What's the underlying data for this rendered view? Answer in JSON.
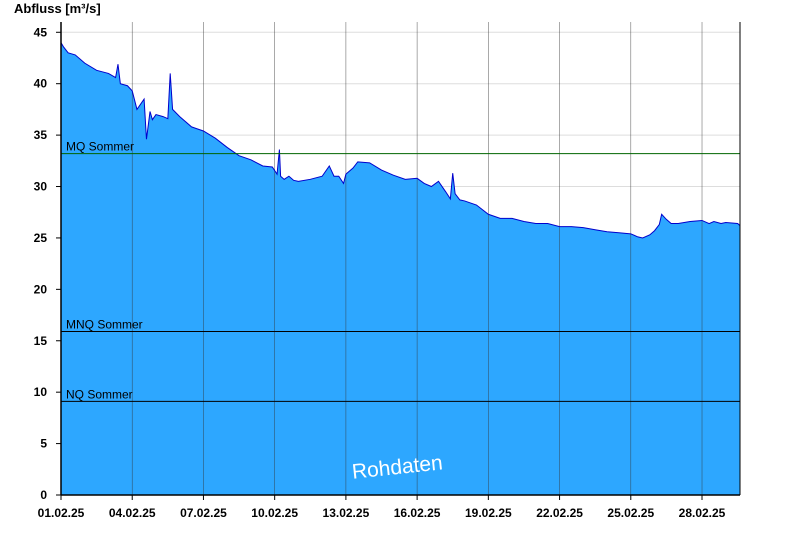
{
  "chart_data": {
    "type": "area",
    "ylabel": "Abfluss [m³/s]",
    "watermark": "Rohdaten",
    "ylim": [
      0,
      46
    ],
    "yticks": [
      0,
      5,
      10,
      15,
      20,
      25,
      30,
      35,
      40,
      45
    ],
    "xticks": [
      "01.02.25",
      "04.02.25",
      "07.02.25",
      "10.02.25",
      "13.02.25",
      "16.02.25",
      "19.02.25",
      "22.02.25",
      "25.02.25",
      "28.02.25"
    ],
    "xlim_days": [
      1,
      29.6
    ],
    "grid": true,
    "colors": {
      "fill": "#2da7ff",
      "line": "#0000cc",
      "mq_line": "#006400",
      "ref_line": "#000000"
    },
    "reference_lines": [
      {
        "name": "MQ Sommer",
        "value": 33.2
      },
      {
        "name": "MNQ Sommer",
        "value": 15.9
      },
      {
        "name": "NQ Sommer",
        "value": 9.1
      }
    ],
    "series": [
      {
        "x": [
          1.0,
          1.1,
          1.3,
          1.6,
          2.0,
          2.5,
          3.0,
          3.3,
          3.4,
          3.5,
          3.8,
          4.0,
          4.2,
          4.5,
          4.6,
          4.75,
          4.85,
          5.0,
          5.3,
          5.5,
          5.6,
          5.7,
          6.0,
          6.5,
          7.0,
          7.5,
          8.0,
          8.5,
          9.0,
          9.5,
          9.9,
          10.1,
          10.2,
          10.25,
          10.4,
          10.6,
          10.8,
          11.0,
          11.5,
          12.0,
          12.3,
          12.5,
          12.7,
          12.9,
          13.0,
          13.3,
          13.5,
          14.0,
          14.5,
          15.0,
          15.5,
          16.0,
          16.3,
          16.6,
          16.9,
          17.2,
          17.4,
          17.5,
          17.6,
          17.8,
          18.0,
          18.5,
          19.0,
          19.5,
          20.0,
          20.5,
          21.0,
          21.5,
          22.0,
          22.5,
          23.0,
          23.5,
          24.0,
          24.5,
          25.0,
          25.3,
          25.5,
          25.8,
          26.0,
          26.2,
          26.3,
          26.5,
          26.7,
          27.0,
          27.5,
          28.0,
          28.3,
          28.5,
          28.8,
          29.0,
          29.5,
          29.6
        ],
        "y": [
          44.0,
          43.6,
          43.0,
          42.8,
          42.0,
          41.3,
          41.0,
          40.6,
          41.9,
          40.0,
          39.8,
          39.3,
          37.5,
          38.5,
          34.6,
          37.3,
          36.5,
          37.0,
          36.8,
          36.6,
          41.0,
          37.5,
          36.8,
          35.8,
          35.4,
          34.7,
          33.8,
          33.0,
          32.6,
          32.0,
          31.9,
          31.2,
          33.6,
          31.0,
          30.7,
          31.0,
          30.6,
          30.5,
          30.7,
          31.0,
          32.0,
          31.0,
          31.0,
          30.3,
          31.2,
          31.8,
          32.4,
          32.3,
          31.6,
          31.1,
          30.7,
          30.8,
          30.3,
          30.0,
          30.5,
          29.5,
          28.8,
          31.3,
          29.3,
          28.7,
          28.6,
          28.2,
          27.3,
          26.9,
          26.9,
          26.6,
          26.4,
          26.4,
          26.1,
          26.1,
          26.0,
          25.8,
          25.6,
          25.5,
          25.4,
          25.1,
          25.0,
          25.3,
          25.7,
          26.3,
          27.3,
          26.8,
          26.4,
          26.4,
          26.6,
          26.7,
          26.4,
          26.6,
          26.4,
          26.5,
          26.4,
          26.2
        ]
      }
    ]
  }
}
